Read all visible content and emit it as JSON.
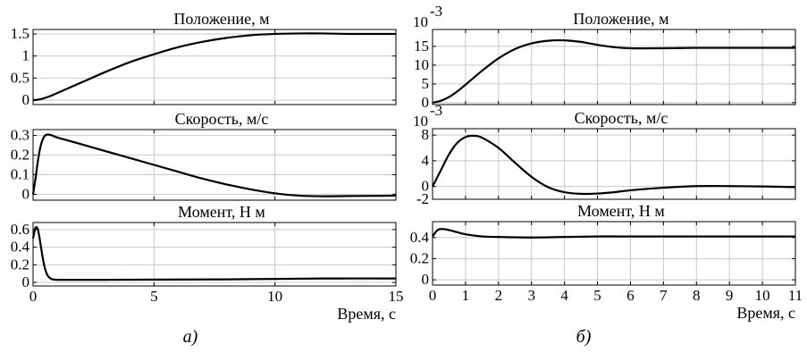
{
  "captions": {
    "left": "а)",
    "right": "б)"
  },
  "chart_data": [
    {
      "type": "line",
      "group": "а)",
      "title": "Положение, м",
      "xlabel": "",
      "ylabel": "",
      "xlim": [
        0,
        15
      ],
      "ylim": [
        -0.1,
        1.6
      ],
      "xticks": [
        0,
        5,
        10,
        15
      ],
      "yticks": [
        0,
        0.5,
        1,
        1.5
      ],
      "ytick_labels": [
        "0",
        "0.5",
        "1",
        "1.5"
      ],
      "show_xtick_labels": false,
      "grid": true,
      "exponent": "",
      "series": [
        {
          "x": [
            0,
            0.3,
            0.7,
            1,
            2,
            3,
            4,
            5,
            6,
            7,
            8,
            9,
            10,
            11,
            12,
            13,
            14,
            15
          ],
          "y": [
            0,
            0.02,
            0.09,
            0.16,
            0.4,
            0.64,
            0.86,
            1.04,
            1.2,
            1.32,
            1.41,
            1.47,
            1.5,
            1.51,
            1.51,
            1.5,
            1.5,
            1.5
          ]
        }
      ]
    },
    {
      "type": "line",
      "group": "а)",
      "title": "Скорость, м/с",
      "xlabel": "",
      "ylabel": "",
      "xlim": [
        0,
        15
      ],
      "ylim": [
        -0.03,
        0.33
      ],
      "xticks": [
        0,
        5,
        10,
        15
      ],
      "yticks": [
        0,
        0.1,
        0.2,
        0.3
      ],
      "ytick_labels": [
        "0",
        "0.1",
        "0.2",
        "0.3"
      ],
      "show_xtick_labels": false,
      "grid": true,
      "exponent": "",
      "series": [
        {
          "x": [
            0,
            0.1,
            0.2,
            0.3,
            0.4,
            0.5,
            0.6,
            0.8,
            1,
            2,
            3,
            4,
            5,
            6,
            7,
            8,
            9,
            10,
            11,
            12,
            13,
            14,
            15
          ],
          "y": [
            0,
            0.08,
            0.17,
            0.24,
            0.28,
            0.3,
            0.305,
            0.3,
            0.29,
            0.255,
            0.22,
            0.185,
            0.15,
            0.115,
            0.08,
            0.05,
            0.025,
            0.005,
            -0.007,
            -0.01,
            -0.009,
            -0.008,
            -0.007
          ]
        }
      ]
    },
    {
      "type": "line",
      "group": "а)",
      "title": "Момент, Н м",
      "xlabel": "Время, с",
      "ylabel": "",
      "xlim": [
        0,
        15
      ],
      "ylim": [
        -0.04,
        0.68
      ],
      "xticks": [
        0,
        5,
        10,
        15
      ],
      "yticks": [
        0,
        0.2,
        0.4,
        0.6
      ],
      "ytick_labels": [
        "0",
        "0.2",
        "0.4",
        "0.6"
      ],
      "xtick_labels": [
        "0",
        "5",
        "10",
        "15"
      ],
      "show_xtick_labels": true,
      "grid": true,
      "exponent": "",
      "series": [
        {
          "x": [
            0,
            0.1,
            0.2,
            0.3,
            0.4,
            0.5,
            0.6,
            0.7,
            0.8,
            1,
            1.5,
            3,
            5,
            8,
            10,
            12,
            15
          ],
          "y": [
            0.5,
            0.62,
            0.6,
            0.45,
            0.28,
            0.15,
            0.08,
            0.05,
            0.035,
            0.03,
            0.03,
            0.03,
            0.032,
            0.035,
            0.04,
            0.045,
            0.045
          ]
        }
      ]
    },
    {
      "type": "line",
      "group": "б)",
      "title": "Положение, м",
      "xlabel": "",
      "ylabel": "",
      "xlim": [
        0,
        11
      ],
      "ylim": [
        -0.5,
        19.5
      ],
      "xticks": [
        0,
        1,
        2,
        3,
        4,
        5,
        6,
        7,
        8,
        9,
        10,
        11
      ],
      "yticks": [
        0,
        5,
        10,
        15
      ],
      "ytick_labels": [
        "0",
        "5",
        "10",
        "15"
      ],
      "show_xtick_labels": false,
      "grid": true,
      "exponent": "10",
      "exponent_power": "-3",
      "series": [
        {
          "x": [
            0,
            0.25,
            0.5,
            0.75,
            1,
            1.5,
            2,
            2.5,
            3,
            3.5,
            4,
            4.5,
            5,
            5.5,
            6,
            7,
            8,
            9,
            10,
            11
          ],
          "y": [
            0,
            0.5,
            1.5,
            3,
            4.8,
            8.5,
            11.8,
            14.3,
            15.8,
            16.5,
            16.6,
            16.2,
            15.4,
            14.8,
            14.5,
            14.5,
            14.6,
            14.6,
            14.6,
            14.6
          ]
        }
      ]
    },
    {
      "type": "line",
      "group": "б)",
      "title": "Скорость, м/с",
      "xlabel": "",
      "ylabel": "",
      "xlim": [
        0,
        11
      ],
      "ylim": [
        -2,
        9
      ],
      "xticks": [
        0,
        1,
        2,
        3,
        4,
        5,
        6,
        7,
        8,
        9,
        10,
        11
      ],
      "yticks": [
        -2,
        0,
        4,
        8
      ],
      "ytick_labels": [
        "-2",
        "0",
        "4",
        "8"
      ],
      "show_xtick_labels": false,
      "grid": true,
      "exponent": "10",
      "exponent_power": "-3",
      "series": [
        {
          "x": [
            0,
            0.25,
            0.5,
            0.75,
            1,
            1.25,
            1.5,
            2,
            2.5,
            3,
            3.5,
            4,
            4.5,
            5,
            5.5,
            6,
            7,
            8,
            9,
            10,
            11
          ],
          "y": [
            0,
            2.5,
            5,
            6.8,
            7.7,
            7.9,
            7.6,
            6,
            3.7,
            1.5,
            -0.1,
            -0.9,
            -1.15,
            -1.1,
            -0.9,
            -0.6,
            -0.2,
            0.05,
            0.05,
            0,
            -0.1
          ]
        }
      ]
    },
    {
      "type": "line",
      "group": "б)",
      "title": "Момент, Н м",
      "xlabel": "Время, с",
      "ylabel": "",
      "xlim": [
        0,
        11
      ],
      "ylim": [
        -0.05,
        0.55
      ],
      "xticks": [
        0,
        1,
        2,
        3,
        4,
        5,
        6,
        7,
        8,
        9,
        10,
        11
      ],
      "yticks": [
        0,
        0.2,
        0.4
      ],
      "ytick_labels": [
        "0",
        "0.2",
        "0.4"
      ],
      "xtick_labels": [
        "0",
        "1",
        "2",
        "3",
        "4",
        "5",
        "6",
        "7",
        "8",
        "9",
        "10",
        "11"
      ],
      "show_xtick_labels": true,
      "grid": true,
      "exponent": "",
      "series": [
        {
          "x": [
            0,
            0.15,
            0.3,
            0.5,
            0.75,
            1,
            1.5,
            2,
            3,
            4,
            5,
            6,
            7,
            8,
            9,
            10,
            11
          ],
          "y": [
            0.41,
            0.47,
            0.48,
            0.47,
            0.45,
            0.43,
            0.41,
            0.405,
            0.4,
            0.405,
            0.41,
            0.41,
            0.41,
            0.41,
            0.41,
            0.41,
            0.41
          ]
        }
      ]
    }
  ]
}
